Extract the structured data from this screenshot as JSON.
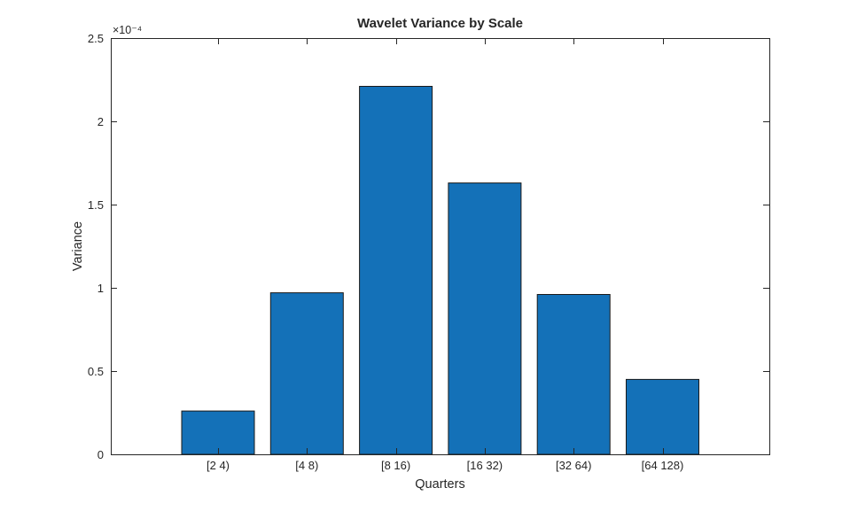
{
  "chart_data": {
    "type": "bar",
    "title": "Wavelet Variance by Scale",
    "xlabel": "Quarters",
    "ylabel": "Variance",
    "y_exponent_label": "×10⁻⁴",
    "categories": [
      "[2 4)",
      "[4 8)",
      "[8 16)",
      "[16 32)",
      "[32 64)",
      "[64 128)"
    ],
    "values": [
      0.26,
      0.97,
      2.21,
      1.63,
      0.96,
      0.45
    ],
    "value_unit_multiplier": "1e-4",
    "ylim": [
      0,
      2.5
    ],
    "yticks": [
      0,
      0.5,
      1,
      1.5,
      2,
      2.5
    ],
    "ytick_labels": [
      "0",
      "0.5",
      "1",
      "1.5",
      "2",
      "2.5"
    ],
    "grid": false,
    "legend": "none",
    "box": true,
    "tick_direction": "in",
    "bar_color": "#1471B8",
    "bar_edge_color": "#1a1a1a",
    "axis_color": "#262626",
    "text_color": "#262626",
    "background": "#ffffff"
  }
}
